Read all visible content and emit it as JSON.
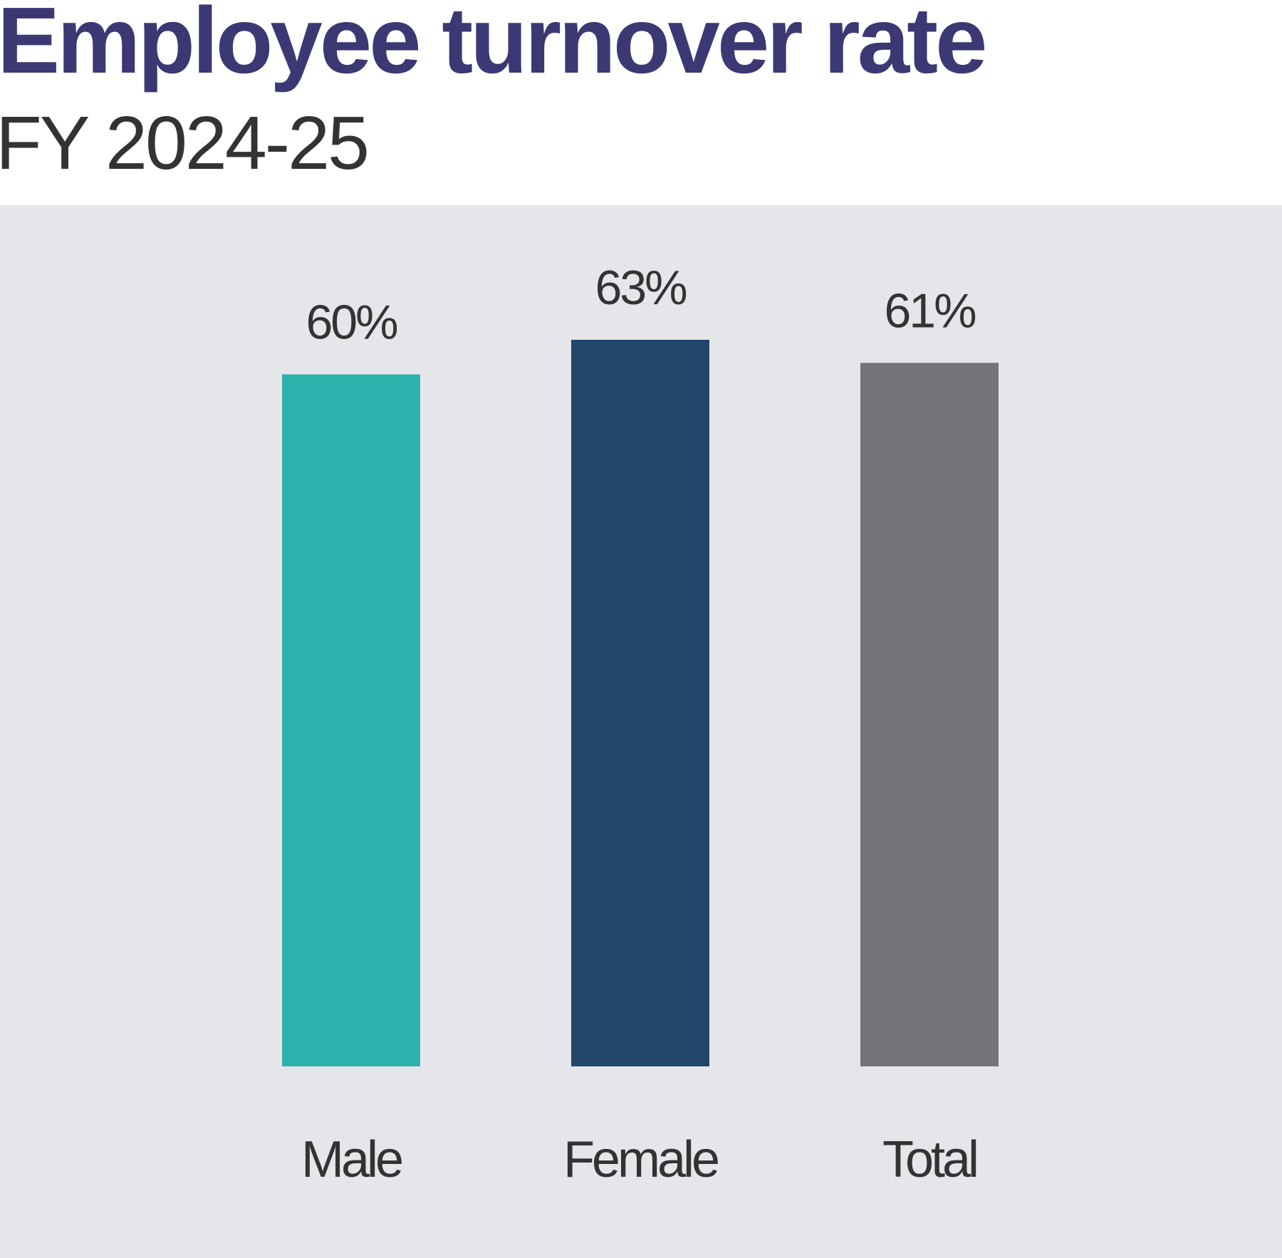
{
  "title": "Employee turnover rate",
  "subtitle": "FY 2024-25",
  "chart_data": {
    "type": "bar",
    "title": "Employee turnover rate",
    "subtitle": "FY 2024-25",
    "categories": [
      "Male",
      "Female",
      "Total"
    ],
    "values": [
      60,
      63,
      61
    ],
    "value_labels": [
      "60%",
      "63%",
      "61%"
    ],
    "colors": [
      "#2eb2ae",
      "#22466a",
      "#737478"
    ],
    "background": "#e5e6ea",
    "xlabel": "",
    "ylabel": "",
    "ylim": [
      0,
      63
    ],
    "grid": false,
    "legend": "none"
  }
}
